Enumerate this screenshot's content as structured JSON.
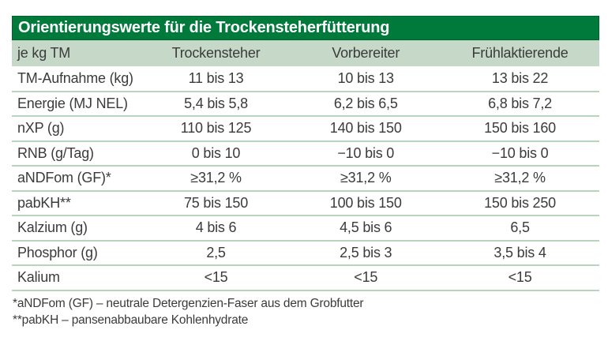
{
  "table": {
    "title": "Orientierungswerte für die Trockensteherfütterung",
    "columns": [
      "je kg TM",
      "Trockensteher",
      "Vorbereiter",
      "Frühlaktierende"
    ],
    "rows": [
      {
        "label": "TM-Aufnahme (kg)",
        "values": [
          "11 bis 13",
          "10 bis 13",
          "13 bis 22"
        ]
      },
      {
        "label": "Energie (MJ NEL)",
        "values": [
          "5,4 bis 5,8",
          "6,2 bis 6,5",
          "6,8 bis 7,2"
        ]
      },
      {
        "label": "nXP (g)",
        "values": [
          "110 bis 125",
          "140 bis 150",
          "150 bis 160"
        ]
      },
      {
        "label": "RNB (g/Tag)",
        "values": [
          "0 bis 10",
          "−10 bis 0",
          "−10 bis 0"
        ]
      },
      {
        "label": "aNDFom (GF)*",
        "values": [
          "≥31,2 %",
          "≥31,2 %",
          "≥31,2 %"
        ]
      },
      {
        "label": "pabKH**",
        "values": [
          "75 bis 150",
          "100 bis 150",
          "150 bis 250"
        ]
      },
      {
        "label": "Kalzium (g)",
        "values": [
          "4 bis 6",
          "4,5 bis 6",
          "6,5"
        ]
      },
      {
        "label": "Phosphor (g)",
        "values": [
          "2,5",
          "2,5 bis 3",
          "3,5 bis 4"
        ]
      },
      {
        "label": "Kalium",
        "values": [
          "<15",
          "<15",
          "<15"
        ]
      }
    ],
    "footnotes": [
      "*aNDFom (GF) – neutrale Detergenzien-Faser aus dem Grobfutter",
      "**pabKH – pansenabbaubare Kohlenhydrate"
    ],
    "colors": {
      "title_bg": "#007a3b",
      "title_text": "#ffffff",
      "header_bg": "#c6d8c8",
      "separator": "#b7d4bd",
      "text": "#3b3b3b"
    }
  }
}
